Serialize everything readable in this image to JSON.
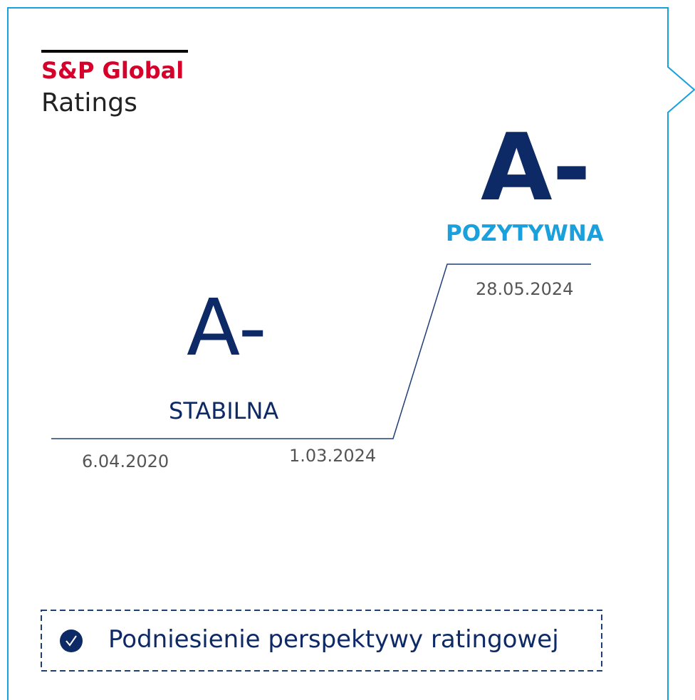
{
  "logo": {
    "brand": "S&P Global",
    "sub": "Ratings"
  },
  "previous": {
    "rating": "A-",
    "outlook": "STABILNA",
    "date_from": "6.04.2020",
    "date_to": "1.03.2024"
  },
  "current": {
    "rating": "A-",
    "outlook": "POZYTYWNA",
    "date": "28.05.2024"
  },
  "note": "Podniesienie perspektywy ratingowej"
}
